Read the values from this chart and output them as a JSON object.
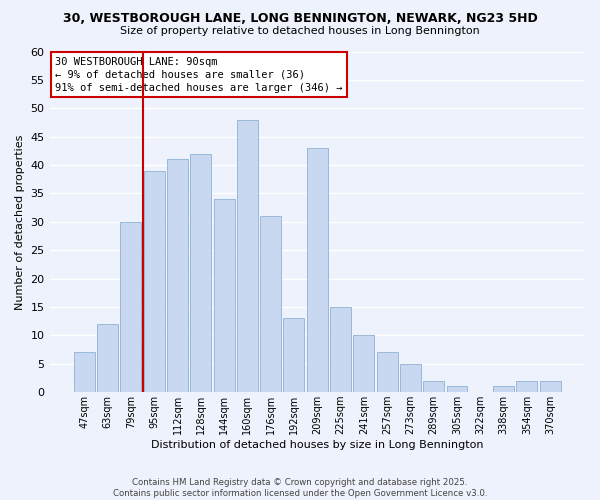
{
  "title_line1": "30, WESTBOROUGH LANE, LONG BENNINGTON, NEWARK, NG23 5HD",
  "title_line2": "Size of property relative to detached houses in Long Bennington",
  "xlabel": "Distribution of detached houses by size in Long Bennington",
  "ylabel": "Number of detached properties",
  "categories": [
    "47sqm",
    "63sqm",
    "79sqm",
    "95sqm",
    "112sqm",
    "128sqm",
    "144sqm",
    "160sqm",
    "176sqm",
    "192sqm",
    "209sqm",
    "225sqm",
    "241sqm",
    "257sqm",
    "273sqm",
    "289sqm",
    "305sqm",
    "322sqm",
    "338sqm",
    "354sqm",
    "370sqm"
  ],
  "values": [
    7,
    12,
    30,
    39,
    41,
    42,
    34,
    48,
    31,
    13,
    43,
    15,
    10,
    7,
    5,
    2,
    1,
    0,
    1,
    2,
    2
  ],
  "bar_color": "#c8d8f0",
  "bar_edge_color": "#9ab8d8",
  "ylim": [
    0,
    60
  ],
  "yticks": [
    0,
    5,
    10,
    15,
    20,
    25,
    30,
    35,
    40,
    45,
    50,
    55,
    60
  ],
  "vline_color": "#cc0000",
  "annotation_box_text_line1": "30 WESTBOROUGH LANE: 90sqm",
  "annotation_box_text_line2": "← 9% of detached houses are smaller (36)",
  "annotation_box_text_line3": "91% of semi-detached houses are larger (346) →",
  "footer_line1": "Contains HM Land Registry data © Crown copyright and database right 2025.",
  "footer_line2": "Contains public sector information licensed under the Open Government Licence v3.0.",
  "background_color": "#eef2fc",
  "grid_color": "#ffffff"
}
